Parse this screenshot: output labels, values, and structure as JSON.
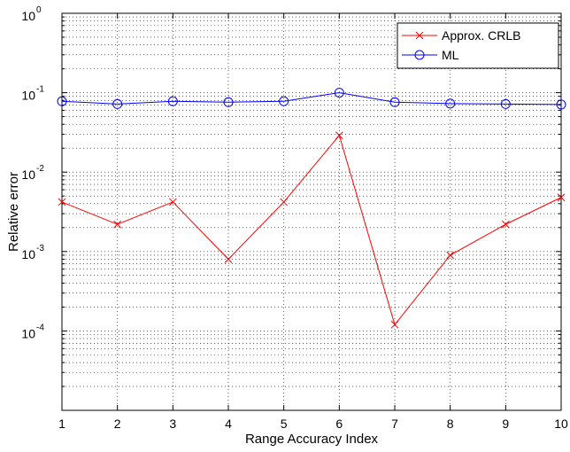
{
  "chart_data": {
    "type": "line",
    "title": "",
    "xlabel": "Range Accuracy Index",
    "ylabel": "Relative error",
    "x": [
      1,
      2,
      3,
      4,
      5,
      6,
      7,
      8,
      9,
      10
    ],
    "xlim": [
      1,
      10
    ],
    "xticks": [
      "1",
      "2",
      "3",
      "4",
      "5",
      "6",
      "7",
      "8",
      "9",
      "10"
    ],
    "yscale": "log",
    "ylim": [
      1e-05,
      1
    ],
    "yticks": [
      {
        "base": "10",
        "exp": "0",
        "value": 1
      },
      {
        "base": "10",
        "exp": "-1",
        "value": 0.1
      },
      {
        "base": "10",
        "exp": "-2",
        "value": 0.01
      },
      {
        "base": "10",
        "exp": "-3",
        "value": 0.001
      },
      {
        "base": "10",
        "exp": "-4",
        "value": 0.0001
      }
    ],
    "grid": true,
    "legend_position": "top-right",
    "series": [
      {
        "name": "Approx. CRLB",
        "color": "#ff0000",
        "marker": "x",
        "values": [
          0.0042,
          0.0022,
          0.0042,
          0.0008,
          0.0042,
          0.029,
          0.00012,
          0.0009,
          0.0022,
          0.0048
        ]
      },
      {
        "name": "ML",
        "color": "#0000ff",
        "marker": "o",
        "values": [
          0.078,
          0.072,
          0.078,
          0.076,
          0.078,
          0.1,
          0.076,
          0.073,
          0.072,
          0.071
        ]
      }
    ]
  }
}
